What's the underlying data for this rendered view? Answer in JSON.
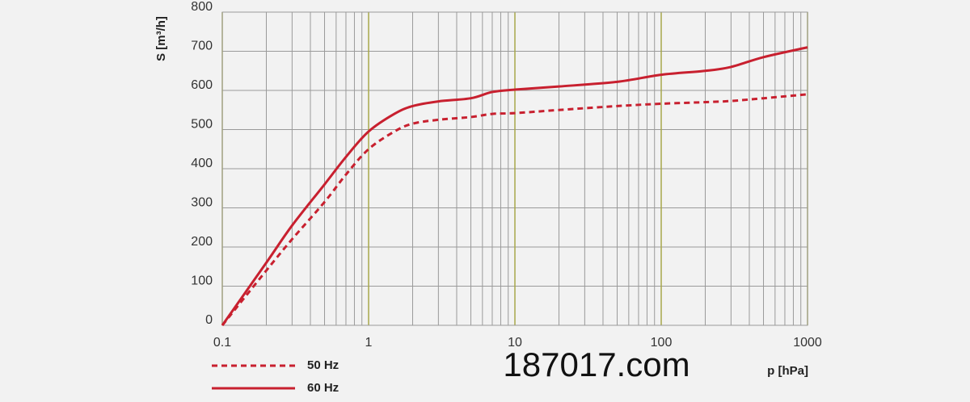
{
  "chart_data": {
    "type": "line",
    "y_label": "S [m³/h]",
    "x_label": "p [hPa]",
    "watermark": "187017.com",
    "x_scale": "log",
    "x": [
      0.1,
      0.2,
      0.3,
      0.5,
      0.7,
      1,
      1.5,
      2,
      3,
      5,
      7,
      10,
      20,
      50,
      100,
      200,
      300,
      500,
      1000
    ],
    "series": [
      {
        "name": "50 Hz",
        "color": "#c8202f",
        "dash": true,
        "values": [
          0,
          140,
          220,
          315,
          385,
          450,
          495,
          515,
          525,
          532,
          540,
          542,
          550,
          560,
          566,
          570,
          573,
          580,
          590
        ]
      },
      {
        "name": "60 Hz",
        "color": "#c8202f",
        "dash": false,
        "values": [
          0,
          160,
          255,
          360,
          430,
          495,
          540,
          560,
          572,
          580,
          596,
          602,
          610,
          622,
          640,
          650,
          660,
          685,
          710
        ]
      }
    ],
    "xlim": [
      0.1,
      1000
    ],
    "ylim": [
      0,
      800
    ],
    "xticks": [
      0.1,
      1,
      10,
      100,
      1000
    ],
    "x_minor_ticks": [
      0.2,
      0.3,
      0.4,
      0.5,
      0.6,
      0.7,
      0.8,
      0.9,
      2,
      3,
      4,
      5,
      6,
      7,
      8,
      9,
      20,
      30,
      40,
      50,
      60,
      70,
      80,
      90,
      200,
      300,
      400,
      500,
      600,
      700,
      800,
      900
    ],
    "yticks": [
      0,
      100,
      200,
      300,
      400,
      500,
      600,
      700,
      800
    ],
    "grid": true,
    "grid_color": "#9a9a9a",
    "major_grid_color": "#a8a84a",
    "legend": "bottom-left"
  }
}
